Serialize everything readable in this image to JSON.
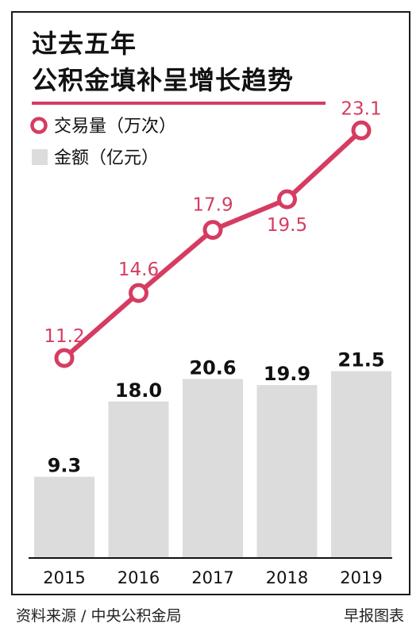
{
  "title_line1": "过去五年",
  "title_line2": "公积金填补呈增长趋势",
  "source": "资料来源 / 中央公积金局",
  "credit": "早报图表",
  "colors": {
    "accent": "#d63c61",
    "bar": "#dcdcdc",
    "text": "#111111"
  },
  "chart_data": {
    "type": "bar+line",
    "categories": [
      "2015",
      "2016",
      "2017",
      "2018",
      "2019"
    ],
    "series": [
      {
        "name": "金额（亿元）",
        "type": "bar",
        "values": [
          9.3,
          18.0,
          20.6,
          19.9,
          21.5
        ],
        "labels": [
          "9.3",
          "18.0",
          "20.6",
          "19.9",
          "21.5"
        ],
        "color": "#dcdcdc"
      },
      {
        "name": "交易量（万次）",
        "type": "line",
        "values": [
          11.2,
          14.6,
          17.9,
          19.5,
          23.1
        ],
        "labels": [
          "11.2",
          "14.6",
          "17.9",
          "19.5",
          "23.1"
        ],
        "color": "#d63c61"
      }
    ],
    "legend": [
      {
        "label": "交易量（万次）",
        "marker": "ring",
        "color": "#d63c61"
      },
      {
        "label": "金额（亿元）",
        "marker": "square",
        "color": "#dcdcdc"
      }
    ],
    "legend_position": "top-left",
    "grid": false
  }
}
